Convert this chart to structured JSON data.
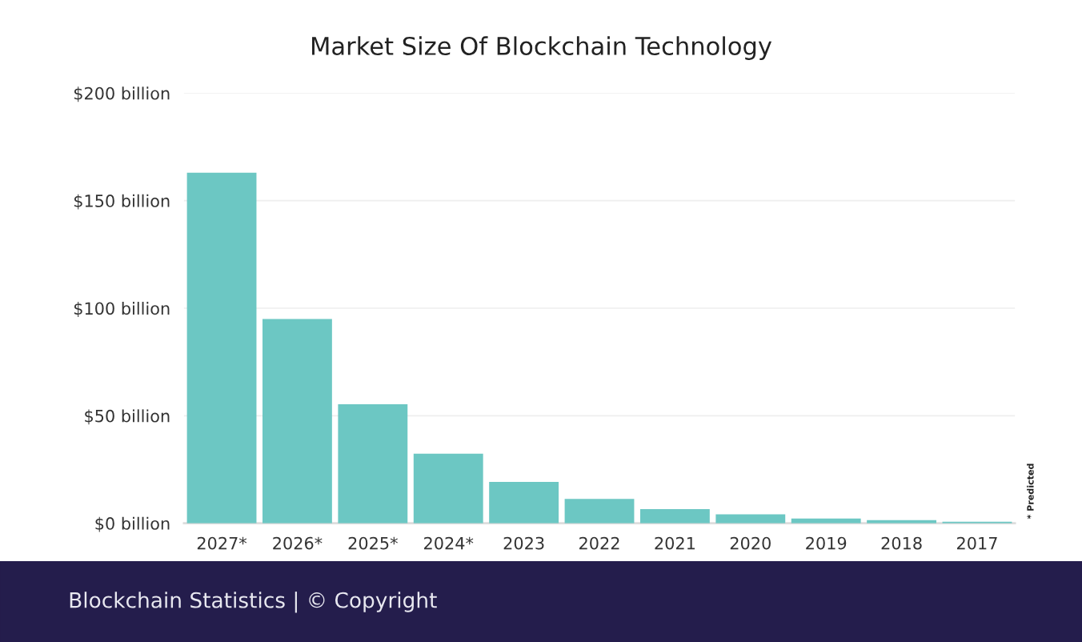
{
  "chart_data": {
    "type": "bar",
    "title": "Market Size Of Blockchain Technology",
    "categories": [
      "2027*",
      "2026*",
      "2025*",
      "2024*",
      "2023",
      "2022",
      "2021",
      "2020",
      "2019",
      "2018",
      "2017"
    ],
    "values": [
      163,
      95,
      55.3,
      32.3,
      19.2,
      11.3,
      6.6,
      4.1,
      2.2,
      1.4,
      0.7
    ],
    "color": "#6cc7c3",
    "ylim": [
      0,
      200
    ],
    "yticks": [
      {
        "value": 0,
        "label": "$0 billion"
      },
      {
        "value": 50,
        "label": "$50 billion"
      },
      {
        "value": 100,
        "label": "$100 billion"
      },
      {
        "value": 150,
        "label": "$150 billion"
      },
      {
        "value": 200,
        "label": "$200 billion"
      }
    ],
    "grid": "y",
    "annotations": [
      "* Predicted",
      "Blockchain Statistics | © Copyright"
    ]
  }
}
